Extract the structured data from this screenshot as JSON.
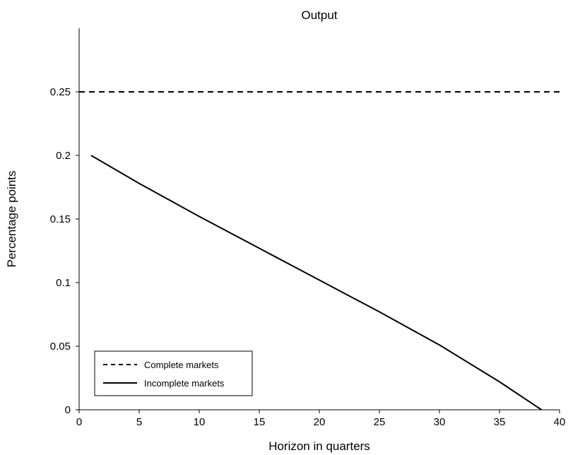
{
  "chart_data": {
    "type": "line",
    "title": "Output",
    "xlabel": "Horizon in quarters",
    "ylabel": "Percentage points",
    "xlim": [
      0,
      40
    ],
    "ylim": [
      0,
      0.3
    ],
    "x_ticks": [
      "0",
      "5",
      "10",
      "15",
      "20",
      "25",
      "30",
      "35",
      "40"
    ],
    "y_ticks": [
      "0",
      "0.05",
      "0.1",
      "0.15",
      "0.2",
      "0.25"
    ],
    "grid": false,
    "legend_position": "bottom-left",
    "series": [
      {
        "name": "Complete markets",
        "style": "dashed",
        "color": "#000000",
        "x": [
          0,
          40
        ],
        "y": [
          0.25,
          0.25
        ]
      },
      {
        "name": "Incomplete markets",
        "style": "solid",
        "color": "#000000",
        "x": [
          1,
          5,
          10,
          15,
          20,
          25,
          30,
          35,
          38.5
        ],
        "y": [
          0.2,
          0.178,
          0.152,
          0.127,
          0.102,
          0.077,
          0.051,
          0.022,
          0
        ]
      }
    ]
  }
}
